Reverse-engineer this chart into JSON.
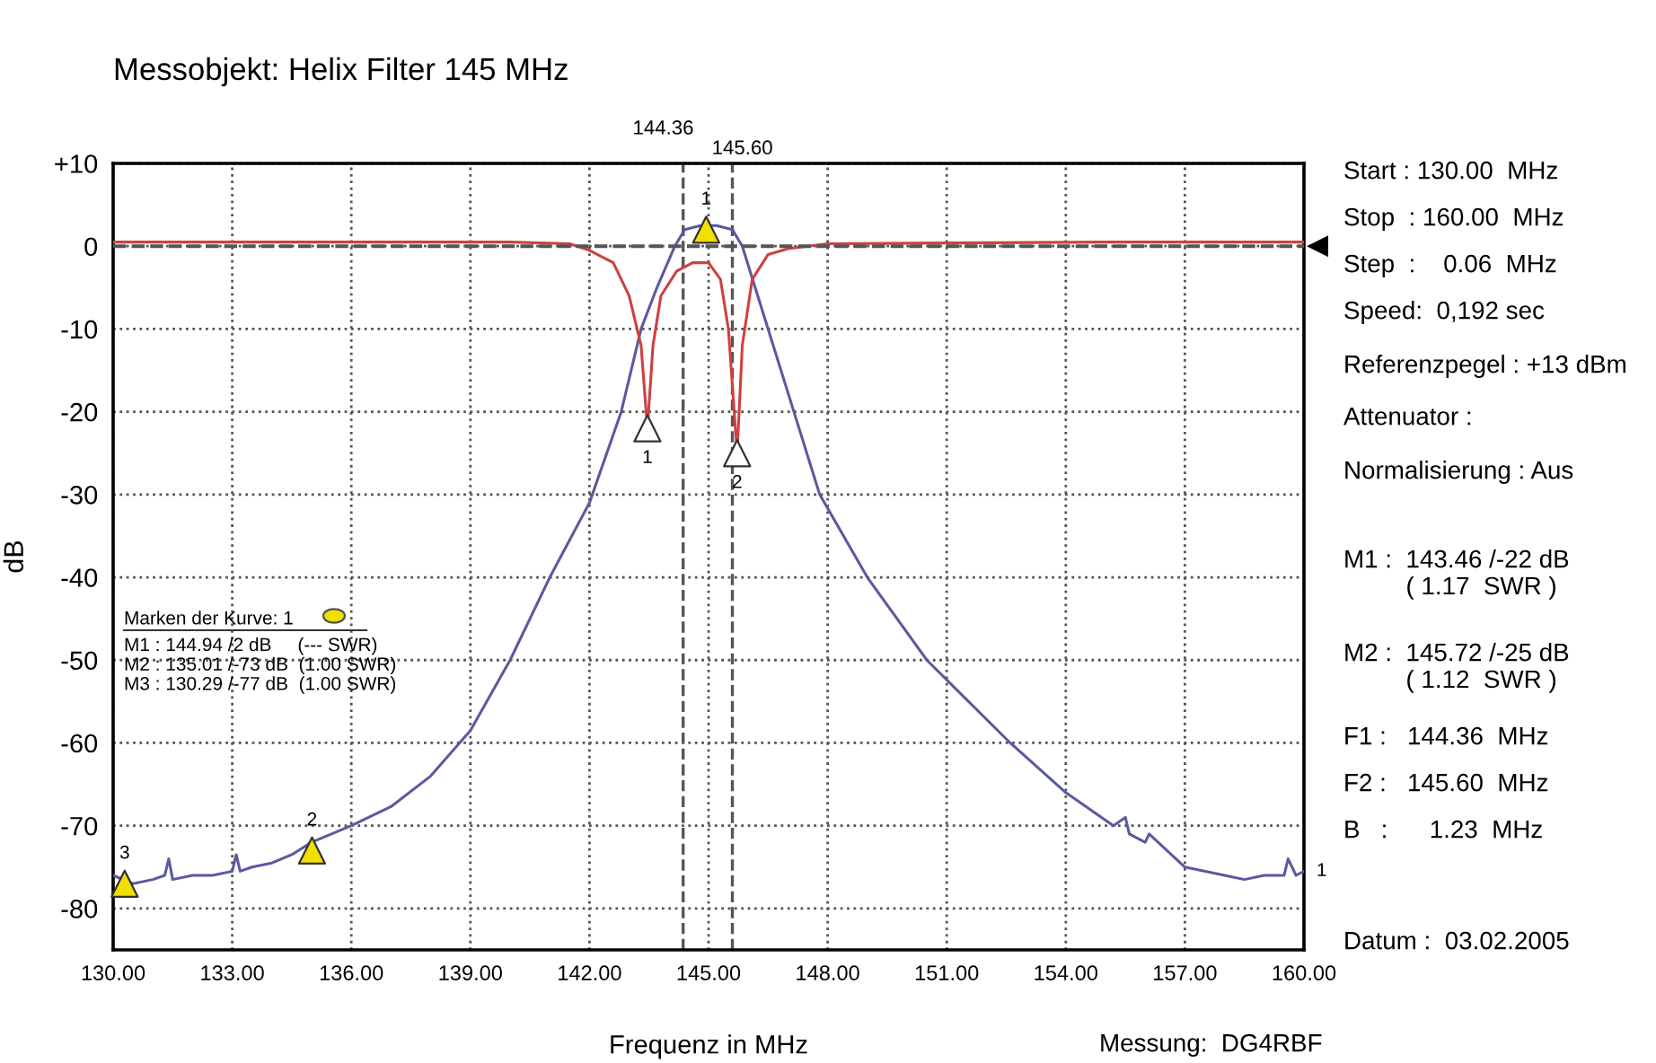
{
  "chart_data": {
    "type": "line",
    "title": "Messobjekt: Helix Filter 145 MHz",
    "xlabel": "Frequenz in MHz",
    "ylabel": "dB",
    "xlim": [
      130,
      160
    ],
    "xticks": [
      {
        "value": 130,
        "label": "130.00"
      },
      {
        "value": 133,
        "label": "133.00"
      },
      {
        "value": 136,
        "label": "136.00"
      },
      {
        "value": 139,
        "label": "139.00"
      },
      {
        "value": 142,
        "label": "142.00"
      },
      {
        "value": 145,
        "label": "145.00"
      },
      {
        "value": 148,
        "label": "148.00"
      },
      {
        "value": 151,
        "label": "151.00"
      },
      {
        "value": 154,
        "label": "154.00"
      },
      {
        "value": 157,
        "label": "157.00"
      },
      {
        "value": 160,
        "label": "160.00"
      }
    ],
    "ylim": [
      -85,
      10
    ],
    "yticks": [
      {
        "value": 10,
        "label": "+10"
      },
      0,
      -10,
      -20,
      -30,
      -40,
      -50,
      -60,
      -70,
      -80
    ],
    "grid": true,
    "line_style": "solid",
    "marker": "none",
    "series": [
      {
        "color": "#5a5aa0",
        "x": [
          130,
          130.5,
          131,
          131.3,
          131.4,
          131.5,
          132,
          132.5,
          133,
          133.1,
          133.2,
          133.5,
          134,
          134.5,
          135,
          136,
          137,
          138,
          139,
          140,
          141,
          142,
          142.8,
          143.3,
          143.7,
          144.15,
          144.4,
          144.8,
          145.2,
          145.6,
          145.85,
          146.5,
          147.15,
          147.8,
          149,
          150.5,
          152.6,
          154,
          155.2,
          155.5,
          155.6,
          156,
          156.1,
          157,
          158,
          158.5,
          159,
          159.5,
          159.6,
          159.8,
          160
        ],
        "values": [
          -76,
          -77,
          -76.5,
          -76,
          -74,
          -76.5,
          -76,
          -76,
          -75.5,
          -73.5,
          -75.5,
          -75,
          -74.5,
          -73.5,
          -72,
          -70,
          -67.7,
          -64,
          -58.5,
          -50,
          -40,
          -31,
          -20,
          -10,
          -5,
          0,
          2,
          2.5,
          2.5,
          2,
          0,
          -10,
          -20,
          -30,
          -40,
          -50,
          -60,
          -66,
          -70,
          -69,
          -71,
          -72,
          -71,
          -75,
          -76,
          -76.5,
          -76,
          -76,
          -74,
          -76,
          -75.5
        ]
      },
      {
        "color": "#d04040",
        "x": [
          130,
          135,
          140,
          141.5,
          142,
          142.6,
          143.0,
          143.3,
          143.46,
          143.6,
          143.8,
          144.2,
          144.6,
          145.0,
          145.3,
          145.5,
          145.72,
          145.85,
          146.1,
          146.5,
          147,
          148,
          155,
          160
        ],
        "values": [
          0.5,
          0.5,
          0.5,
          0.3,
          -0.5,
          -2,
          -6,
          -12,
          -22,
          -12,
          -6,
          -3,
          -2,
          -2,
          -4,
          -10,
          -25,
          -12,
          -4,
          -1,
          -0.3,
          0.3,
          0.5,
          0.5
        ]
      },
      {
        "type": "scatter",
        "color": "#f0e000",
        "marker": "triangle",
        "x": [
          144.94,
          135.01,
          130.29
        ],
        "values": [
          2,
          -73,
          -77
        ]
      },
      {
        "type": "scatter",
        "color": "#ffffff",
        "marker": "triangle",
        "x": [
          143.46,
          145.72
        ],
        "values": [
          -22,
          -25
        ]
      }
    ],
    "ref_lines": [
      {
        "axis": "x",
        "value": 144.36,
        "label": "144.36",
        "color": "#555555",
        "line_style": "dashed"
      },
      {
        "axis": "x",
        "value": 145.6,
        "label": "145.60",
        "color": "#555555",
        "line_style": "dashed"
      },
      {
        "axis": "y",
        "value": 0,
        "label": null,
        "color": "#555555",
        "line_style": "dashed"
      }
    ],
    "annotations": [
      {
        "text": "1",
        "x": 144.94,
        "y": 2
      },
      {
        "text": "2",
        "x": 135.01,
        "y": -73
      },
      {
        "text": "3",
        "x": 130.29,
        "y": -77
      },
      {
        "text": "1",
        "x": 143.46,
        "y": -22
      },
      {
        "text": "2",
        "x": 145.72,
        "y": -25
      },
      {
        "text": "1",
        "x": 160,
        "y": -75.5
      },
      "Marken der Kurve: 1",
      "M1 : 144.94 /2 dB     (--- SWR)\nM2 : 135.01 /-73 dB  (1.00 SWR)\nM3 : 130.29 /-77 dB  (1.00 SWR)",
      "Start : 130.00  MHz",
      "Stop  : 160.00  MHz",
      "Step  :    0.06  MHz",
      "Speed:  0,192 sec",
      "Referenzpegel : +13 dBm",
      "Attenuator :",
      "Normalisierung : Aus",
      "M1 :  143.46 /-22 dB\n         ( 1.17  SWR )",
      "M2 :  145.72 /-25 dB\n         ( 1.12  SWR )",
      "F1 :   144.36  MHz",
      "F2 :   145.60  MHz",
      "B   :      1.23  MHz",
      "Datum :  03.02.2005",
      "Messung:  DG4RBF"
    ]
  }
}
